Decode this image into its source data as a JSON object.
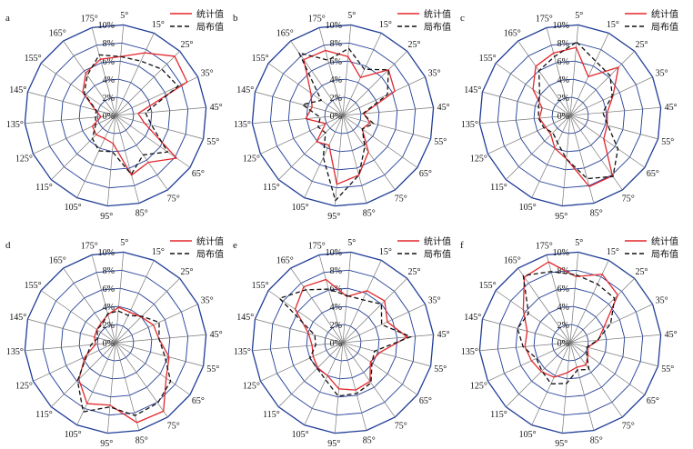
{
  "legend": {
    "stat_label": "统计值",
    "dist_label": "局布值",
    "stat_color": "#e3262b",
    "dist_color": "#111111"
  },
  "grid": {
    "ring_color": "#1f3c96",
    "spoke_color": "#777777"
  },
  "chart_data": [
    {
      "type": "radar",
      "panel_label": "a",
      "angles": [
        "5°",
        "15°",
        "25°",
        "35°",
        "45°",
        "55°",
        "65°",
        "75°",
        "85°",
        "95°",
        "105°",
        "115°",
        "125°",
        "135°",
        "145°",
        "155°",
        "165°",
        "175°"
      ],
      "radial_ticks": [
        "0%",
        "2%",
        "4%",
        "6%",
        "8%",
        "10%"
      ],
      "rlim": [
        0,
        10
      ],
      "series": [
        {
          "name": "统计值",
          "values": [
            6.5,
            7.6,
            9.2,
            8.7,
            2.5,
            3.3,
            8.2,
            6.3,
            6.8,
            3.1,
            2.8,
            3.0,
            2.8,
            1.6,
            2.3,
            4.4,
            5.7,
            6.4
          ]
        },
        {
          "name": "局布值",
          "values": [
            6.5,
            6.6,
            7.2,
            7.6,
            3.3,
            4.1,
            7.0,
            5.3,
            6.7,
            4.0,
            4.3,
            3.6,
            2.4,
            2.2,
            2.2,
            4.2,
            5.4,
            6.9
          ]
        }
      ]
    },
    {
      "type": "radar",
      "panel_label": "b",
      "angles": [
        "5°",
        "15°",
        "25°",
        "35°",
        "45°",
        "55°",
        "65°",
        "75°",
        "85°",
        "95°",
        "105°",
        "115°",
        "125°",
        "135°",
        "145°",
        "155°",
        "165°",
        "175°"
      ],
      "radial_ticks": [
        "0%",
        "2%",
        "4%",
        "6%",
        "8%",
        "10%"
      ],
      "rlim": [
        0,
        10
      ],
      "series": [
        {
          "name": "统计值",
          "values": [
            6.5,
            4.6,
            7.1,
            6.3,
            2.3,
            3.1,
            2.6,
            4.9,
            6.8,
            7.6,
            3.6,
            4.1,
            2.1,
            4.1,
            3.5,
            4.3,
            7.5,
            7.4
          ]
        },
        {
          "name": "局布值",
          "values": [
            7.4,
            5.6,
            7.1,
            5.4,
            2.2,
            3.5,
            2.6,
            4.2,
            6.8,
            9.4,
            5.1,
            2.7,
            3.0,
            2.5,
            4.6,
            2.9,
            8.4,
            6.3
          ]
        }
      ]
    },
    {
      "type": "radar",
      "panel_label": "c",
      "angles": [
        "5°",
        "15°",
        "25°",
        "35°",
        "45°",
        "55°",
        "65°",
        "75°",
        "85°",
        "95°",
        "105°",
        "115°",
        "125°",
        "135°",
        "145°",
        "155°",
        "165°",
        "175°"
      ],
      "radial_ticks": [
        "0%",
        "2%",
        "4%",
        "6%",
        "8%",
        "10%"
      ],
      "rlim": [
        0,
        10
      ],
      "series": [
        {
          "name": "统计值",
          "values": [
            7.5,
            4.7,
            7.5,
            5.2,
            4.1,
            4.2,
            4.5,
            8.1,
            8.1,
            4.8,
            4.0,
            3.0,
            3.0,
            3.4,
            3.2,
            5.0,
            6.6,
            7.1
          ]
        },
        {
          "name": "局布值",
          "values": [
            8.1,
            6.6,
            6.2,
            5.1,
            3.6,
            4.3,
            6.4,
            8.2,
            7.2,
            4.8,
            3.3,
            2.7,
            3.2,
            3.5,
            3.6,
            4.1,
            6.0,
            6.7
          ]
        }
      ]
    },
    {
      "type": "radar",
      "panel_label": "d",
      "angles": [
        "5°",
        "15°",
        "25°",
        "35°",
        "45°",
        "55°",
        "65°",
        "75°",
        "85°",
        "95°",
        "105°",
        "115°",
        "125°",
        "135°",
        "145°",
        "155°",
        "165°",
        "175°"
      ],
      "radial_ticks": [
        "0%",
        "2%",
        "4%",
        "6%",
        "8%",
        "10%"
      ],
      "rlim": [
        0,
        10
      ],
      "series": [
        {
          "name": "统计值",
          "values": [
            3.9,
            3.7,
            4.0,
            4.6,
            4.8,
            6.1,
            6.8,
            9.2,
            9.1,
            6.9,
            7.4,
            5.7,
            3.7,
            2.2,
            2.4,
            2.5,
            2.7,
            3.2
          ]
        },
        {
          "name": "局布值",
          "values": [
            3.5,
            3.3,
            4.1,
            5.3,
            4.8,
            5.6,
            7.4,
            8.1,
            8.3,
            7.1,
            8.4,
            5.9,
            3.5,
            2.7,
            2.0,
            2.5,
            2.5,
            3.3
          ]
        }
      ]
    },
    {
      "type": "radar",
      "panel_label": "e",
      "angles": [
        "5°",
        "15°",
        "25°",
        "35°",
        "45°",
        "55°",
        "65°",
        "75°",
        "85°",
        "95°",
        "105°",
        "115°",
        "125°",
        "135°",
        "145°",
        "155°",
        "165°",
        "175°"
      ],
      "radial_ticks": [
        "0%",
        "2%",
        "4%",
        "6%",
        "8%",
        "10%"
      ],
      "rlim": [
        0,
        10
      ],
      "series": [
        {
          "name": "统计值",
          "values": [
            5.1,
            6.3,
            6.5,
            5.4,
            7.1,
            4.2,
            3.7,
            5.2,
            5.4,
            5.1,
            4.0,
            3.9,
            3.6,
            3.4,
            3.9,
            6.4,
            7.5,
            7.2
          ]
        },
        {
          "name": "局布值",
          "values": [
            5.2,
            5.2,
            6.0,
            4.7,
            7.5,
            3.6,
            3.9,
            5.4,
            5.8,
            5.9,
            4.5,
            4.0,
            4.0,
            3.0,
            3.2,
            8.5,
            7.1,
            6.1
          ]
        }
      ]
    },
    {
      "type": "radar",
      "panel_label": "f",
      "angles": [
        "5°",
        "15°",
        "25°",
        "35°",
        "45°",
        "55°",
        "65°",
        "75°",
        "85°",
        "95°",
        "105°",
        "115°",
        "125°",
        "135°",
        "145°",
        "155°",
        "165°",
        "175°"
      ],
      "radial_ticks": [
        "0%",
        "2%",
        "4%",
        "6%",
        "8%",
        "10%"
      ],
      "rlim": [
        0,
        10
      ],
      "series": [
        {
          "name": "统计值",
          "values": [
            7.3,
            8.3,
            7.4,
            4.1,
            3.1,
            2.0,
            2.4,
            3.0,
            2.8,
            3.3,
            4.2,
            4.5,
            4.7,
            5.0,
            4.9,
            6.3,
            8.8,
            9.2
          ]
        },
        {
          "name": "局布值",
          "values": [
            7.5,
            7.1,
            6.9,
            4.9,
            3.0,
            1.9,
            2.2,
            3.6,
            3.1,
            4.5,
            5.0,
            4.4,
            4.1,
            5.2,
            6.0,
            5.6,
            9.0,
            8.1
          ]
        }
      ]
    }
  ]
}
